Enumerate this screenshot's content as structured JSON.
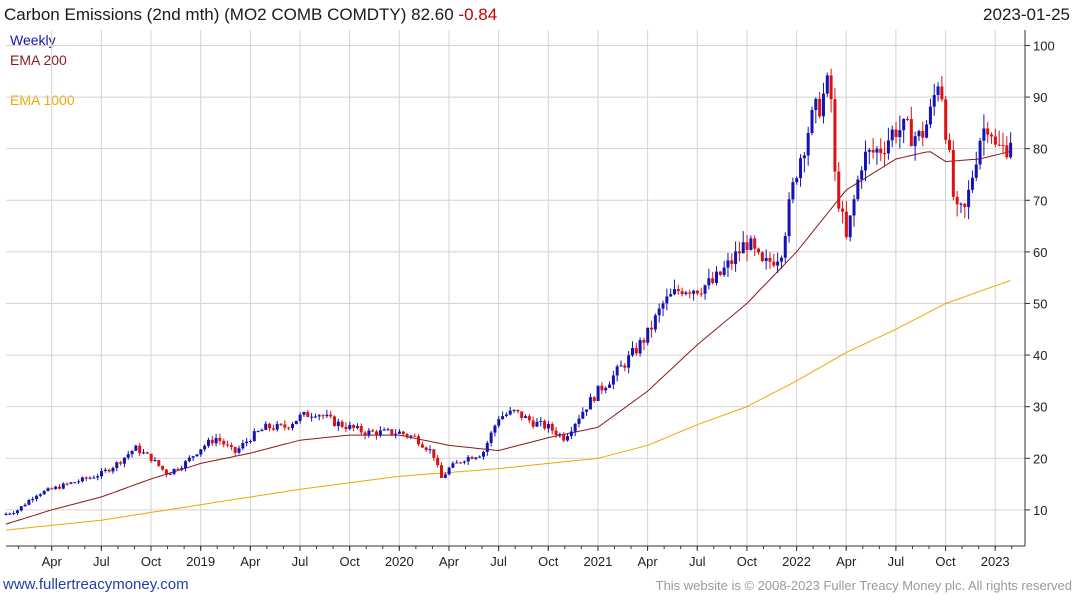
{
  "header": {
    "title": "Carbon Emissions (2nd mth) (MO2 COMB COMDTY)",
    "last": "82.60",
    "change": "-0.84",
    "date": "2023-01-25"
  },
  "legend": {
    "frequency": "Weekly",
    "ema200": "EMA 200",
    "ema1000": "EMA 1000"
  },
  "footer": {
    "site": "www.fullertreacymoney.com",
    "copyright": "This website is © 2008-2023 Fuller Treacy Money plc. All rights reserved"
  },
  "colors": {
    "up": "#1414b4",
    "down": "#dd1111",
    "ema200": "#8b1a1a",
    "ema1000": "#f0a800",
    "grid": "#d4d4d4",
    "axis": "#333333"
  },
  "chart_data": {
    "type": "candlestick",
    "frequency": "Weekly",
    "ylim": [
      3,
      103
    ],
    "y_ticks": [
      10,
      20,
      30,
      40,
      50,
      60,
      70,
      80,
      90,
      100
    ],
    "x_tick_labels": [
      "Apr",
      "Jul",
      "Oct",
      "2019",
      "Apr",
      "Jul",
      "Oct",
      "2020",
      "Apr",
      "Jul",
      "Oct",
      "2021",
      "Apr",
      "Jul",
      "Oct",
      "2022",
      "Apr",
      "Jul",
      "Oct",
      "2023"
    ],
    "x_range": [
      2018.02,
      2023.15
    ],
    "grid": true,
    "series": [
      {
        "name": "Carbon Emissions (2nd mth)",
        "kind": "ohlc_close_path",
        "t": [
          2018.0,
          2018.08,
          2018.17,
          2018.25,
          2018.33,
          2018.42,
          2018.5,
          2018.58,
          2018.67,
          2018.75,
          2018.83,
          2018.92,
          2019.0,
          2019.08,
          2019.17,
          2019.25,
          2019.33,
          2019.42,
          2019.5,
          2019.58,
          2019.67,
          2019.75,
          2019.83,
          2019.92,
          2020.0,
          2020.08,
          2020.17,
          2020.21,
          2020.25,
          2020.33,
          2020.42,
          2020.5,
          2020.58,
          2020.67,
          2020.75,
          2020.83,
          2020.92,
          2021.0,
          2021.08,
          2021.17,
          2021.25,
          2021.33,
          2021.42,
          2021.5,
          2021.58,
          2021.67,
          2021.75,
          2021.83,
          2021.92,
          2022.0,
          2022.06,
          2022.12,
          2022.17,
          2022.19,
          2022.25,
          2022.33,
          2022.42,
          2022.5,
          2022.58,
          2022.62,
          2022.67,
          2022.72,
          2022.8,
          2022.85,
          2022.92,
          2022.97,
          2023.0,
          2023.05,
          2023.08
        ],
        "close": [
          9,
          10,
          13,
          14,
          15,
          16,
          17,
          19,
          22,
          20,
          17,
          19,
          22,
          24,
          21,
          24,
          26,
          26,
          28,
          29,
          27,
          26,
          25,
          25,
          25,
          24,
          21,
          16,
          18,
          20,
          21,
          28,
          29,
          27,
          26,
          24,
          29,
          33,
          36,
          40,
          44,
          50,
          53,
          53,
          54,
          58,
          62,
          57,
          60,
          76,
          84,
          89,
          93,
          75,
          62,
          78,
          80,
          84,
          83,
          82,
          86,
          95,
          67,
          68,
          82,
          86,
          80,
          80,
          82.6
        ]
      },
      {
        "name": "EMA 200",
        "t": [
          2018.0,
          2018.25,
          2018.5,
          2018.75,
          2019.0,
          2019.25,
          2019.5,
          2019.75,
          2020.0,
          2020.25,
          2020.5,
          2020.75,
          2021.0,
          2021.25,
          2021.5,
          2021.75,
          2022.0,
          2022.25,
          2022.5,
          2022.67,
          2022.75,
          2022.92,
          2023.08
        ],
        "values": [
          7,
          10,
          12.5,
          16,
          19,
          21,
          23.5,
          24.5,
          24.5,
          22.5,
          21.5,
          24,
          26,
          33,
          42,
          50,
          60,
          72,
          78,
          79.5,
          77.5,
          78,
          79.5
        ]
      },
      {
        "name": "EMA 1000",
        "t": [
          2018.0,
          2018.5,
          2019.0,
          2019.5,
          2020.0,
          2020.5,
          2021.0,
          2021.25,
          2021.5,
          2021.75,
          2022.0,
          2022.25,
          2022.5,
          2022.75,
          2023.08
        ],
        "values": [
          6,
          8,
          11,
          14,
          16.5,
          18,
          20,
          22.5,
          26.5,
          30,
          35,
          40.5,
          45,
          50,
          54.5
        ]
      }
    ]
  }
}
